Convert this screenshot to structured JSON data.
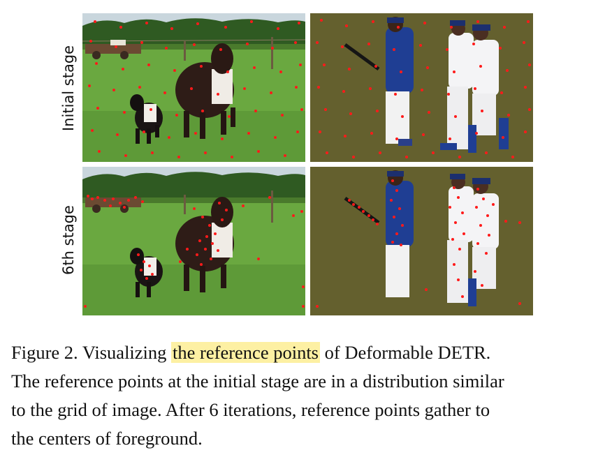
{
  "figure": {
    "row_labels": [
      "Initial stage",
      "6th stage"
    ],
    "panels": [
      {
        "scene": "cows-in-field",
        "stage": "Initial stage"
      },
      {
        "scene": "baseball-players",
        "stage": "Initial stage"
      },
      {
        "scene": "cows-in-field",
        "stage": "6th stage"
      },
      {
        "scene": "baseball-players",
        "stage": "6th stage"
      }
    ],
    "point_color": "#ff1a1a"
  },
  "caption": {
    "prefix": "Figure 2. Visualizing ",
    "highlight": "the reference points",
    "suffix": " of Deformable DETR.",
    "line2": "The reference points at the initial stage are in a distribution similar",
    "line3": "to the grid of image.  After 6 iterations, reference points gather to",
    "line4": "the centers of foreground.",
    "highlight_color": "#fdf0a3"
  }
}
